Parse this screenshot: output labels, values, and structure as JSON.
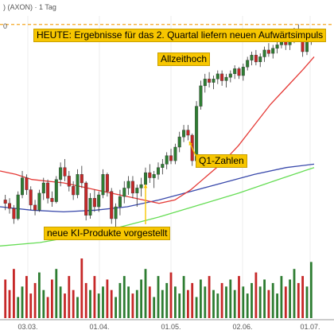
{
  "header": {
    "symbol": ") (AXON) · 1 Tag",
    "axis_hint": "0"
  },
  "annotations": {
    "heute": "HEUTE: Ergebnisse für das 2. Quartal liefern neuen Aufwärtsimpuls",
    "allzeithoch": "Allzeithoch",
    "q1": "Q1-Zahlen",
    "ki": "neue KI-Produkte vorgestellt"
  },
  "colors": {
    "up": "#2e7d32",
    "down": "#c62828",
    "ma_red": "#e53935",
    "ma_blue": "#3949ab",
    "ma_green": "#66dd55",
    "highlight": "#f7c600",
    "ath_line": "#f5a623"
  },
  "chart_data": {
    "type": "candlestick",
    "x_ticks": [
      "03.03.",
      "01.04.",
      "01.05.",
      "02.06.",
      "01.07."
    ],
    "series": [
      {
        "name": "price_ohlc",
        "style": "candles",
        "values": [
          [
            192,
            195,
            186,
            190
          ],
          [
            190,
            193,
            184,
            187
          ],
          [
            187,
            189,
            178,
            181
          ],
          [
            181,
            197,
            180,
            195
          ],
          [
            195,
            209,
            193,
            205
          ],
          [
            205,
            207,
            195,
            198
          ],
          [
            198,
            200,
            186,
            189
          ],
          [
            189,
            192,
            183,
            186
          ],
          [
            186,
            198,
            185,
            196
          ],
          [
            196,
            205,
            192,
            202
          ],
          [
            202,
            204,
            190,
            193
          ],
          [
            193,
            197,
            188,
            191
          ],
          [
            191,
            206,
            190,
            204
          ],
          [
            204,
            214,
            200,
            211
          ],
          [
            211,
            216,
            203,
            206
          ],
          [
            206,
            209,
            197,
            200
          ],
          [
            200,
            203,
            192,
            195
          ],
          [
            195,
            210,
            193,
            207
          ],
          [
            207,
            212,
            199,
            202
          ],
          [
            202,
            203,
            180,
            183
          ],
          [
            183,
            196,
            181,
            193
          ],
          [
            193,
            198,
            185,
            188
          ],
          [
            188,
            197,
            185,
            195
          ],
          [
            195,
            210,
            193,
            207
          ],
          [
            207,
            208,
            194,
            197
          ],
          [
            197,
            199,
            178,
            181
          ],
          [
            181,
            190,
            170,
            188
          ],
          [
            188,
            198,
            183,
            194
          ],
          [
            194,
            203,
            190,
            199
          ],
          [
            199,
            206,
            195,
            203
          ],
          [
            203,
            206,
            193,
            196
          ],
          [
            196,
            201,
            188,
            199
          ],
          [
            199,
            205,
            194,
            201
          ],
          [
            201,
            211,
            198,
            208
          ],
          [
            208,
            213,
            202,
            205
          ],
          [
            205,
            209,
            199,
            207
          ],
          [
            207,
            214,
            204,
            211
          ],
          [
            211,
            216,
            207,
            213
          ],
          [
            213,
            220,
            210,
            218
          ],
          [
            218,
            222,
            213,
            215
          ],
          [
            215,
            225,
            213,
            223
          ],
          [
            223,
            232,
            220,
            229
          ],
          [
            229,
            236,
            226,
            233
          ],
          [
            233,
            236,
            227,
            230
          ],
          [
            230,
            231,
            212,
            215
          ],
          [
            215,
            250,
            214,
            247
          ],
          [
            247,
            262,
            245,
            259
          ],
          [
            259,
            266,
            255,
            263
          ],
          [
            263,
            267,
            258,
            261
          ],
          [
            261,
            265,
            257,
            263
          ],
          [
            263,
            268,
            260,
            266
          ],
          [
            266,
            268,
            259,
            262
          ],
          [
            262,
            266,
            258,
            264
          ],
          [
            264,
            268,
            261,
            266
          ],
          [
            266,
            271,
            263,
            269
          ],
          [
            269,
            270,
            263,
            265
          ],
          [
            265,
            272,
            262,
            270
          ],
          [
            270,
            276,
            268,
            274
          ],
          [
            274,
            279,
            271,
            277
          ],
          [
            277,
            280,
            271,
            273
          ],
          [
            273,
            278,
            270,
            276
          ],
          [
            276,
            282,
            273,
            280
          ],
          [
            280,
            284,
            276,
            278
          ],
          [
            278,
            283,
            275,
            281
          ],
          [
            281,
            285,
            278,
            283
          ],
          [
            283,
            288,
            281,
            286
          ],
          [
            286,
            289,
            280,
            283
          ],
          [
            283,
            286,
            280,
            285
          ],
          [
            285,
            293,
            284,
            291
          ],
          [
            291,
            295,
            287,
            289
          ],
          [
            289,
            290,
            276,
            279
          ],
          [
            279,
            288,
            277,
            286
          ],
          [
            286,
            291,
            283,
            289
          ]
        ]
      },
      {
        "name": "ma_red",
        "style": "line",
        "values": [
          [
            0,
            209
          ],
          [
            20,
            207
          ],
          [
            40,
            204
          ],
          [
            60,
            203
          ],
          [
            80,
            202
          ],
          [
            100,
            200
          ],
          [
            120,
            198
          ],
          [
            140,
            196
          ],
          [
            160,
            194
          ],
          [
            180,
            192
          ],
          [
            200,
            190
          ],
          [
            220,
            192
          ],
          [
            240,
            198
          ],
          [
            260,
            206
          ],
          [
            280,
            214
          ],
          [
            300,
            224
          ],
          [
            320,
            236
          ],
          [
            340,
            248
          ],
          [
            360,
            258
          ],
          [
            380,
            268
          ],
          [
            395,
            276
          ]
        ]
      },
      {
        "name": "ma_blue",
        "style": "line",
        "values": [
          [
            0,
            188
          ],
          [
            40,
            186
          ],
          [
            80,
            185
          ],
          [
            120,
            186
          ],
          [
            160,
            188
          ],
          [
            200,
            192
          ],
          [
            240,
            197
          ],
          [
            280,
            202
          ],
          [
            320,
            207
          ],
          [
            360,
            211
          ],
          [
            395,
            213
          ]
        ]
      },
      {
        "name": "ma_green",
        "style": "line",
        "values": [
          [
            0,
            165
          ],
          [
            50,
            167
          ],
          [
            100,
            171
          ],
          [
            150,
            176
          ],
          [
            200,
            182
          ],
          [
            250,
            189
          ],
          [
            300,
            196
          ],
          [
            350,
            204
          ],
          [
            395,
            211
          ]
        ]
      },
      {
        "name": "volume",
        "style": "bars",
        "values": [
          55,
          40,
          70,
          30,
          45,
          60,
          35,
          50,
          65,
          40,
          30,
          55,
          70,
          45,
          35,
          60,
          40,
          30,
          85,
          50,
          40,
          60,
          35,
          45,
          55,
          40,
          30,
          50,
          60,
          45,
          35,
          40,
          55,
          70,
          45,
          30,
          60,
          40,
          50,
          65,
          45,
          35,
          60,
          40,
          50,
          30,
          55,
          45,
          60,
          40,
          35,
          50,
          45,
          55,
          40,
          60,
          45,
          35,
          50,
          65,
          45,
          55,
          40,
          50,
          35,
          60,
          45,
          55,
          70,
          50,
          60,
          45,
          80
        ]
      }
    ],
    "price_range": [
      160,
      300
    ]
  }
}
